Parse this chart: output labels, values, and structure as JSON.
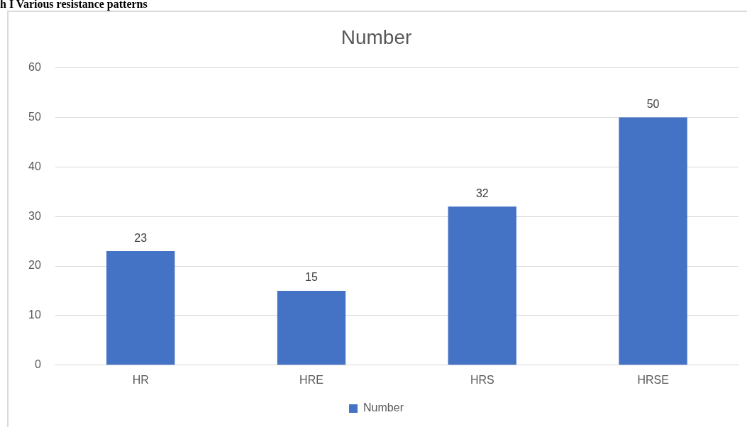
{
  "chart_data": {
    "type": "bar",
    "title": "Number",
    "annotations": [
      "h I Various resistance patterns"
    ],
    "categories": [
      "HR",
      "HRE",
      "HRS",
      "HRSE"
    ],
    "series": [
      {
        "name": "Number",
        "color": "#4472c4",
        "values": [
          23,
          15,
          32,
          50
        ]
      }
    ],
    "ylim": [
      0,
      60
    ],
    "yticks": [
      0,
      10,
      20,
      30,
      40,
      50,
      60
    ],
    "grid": "y",
    "legend": "bottom",
    "data_labels": true
  }
}
